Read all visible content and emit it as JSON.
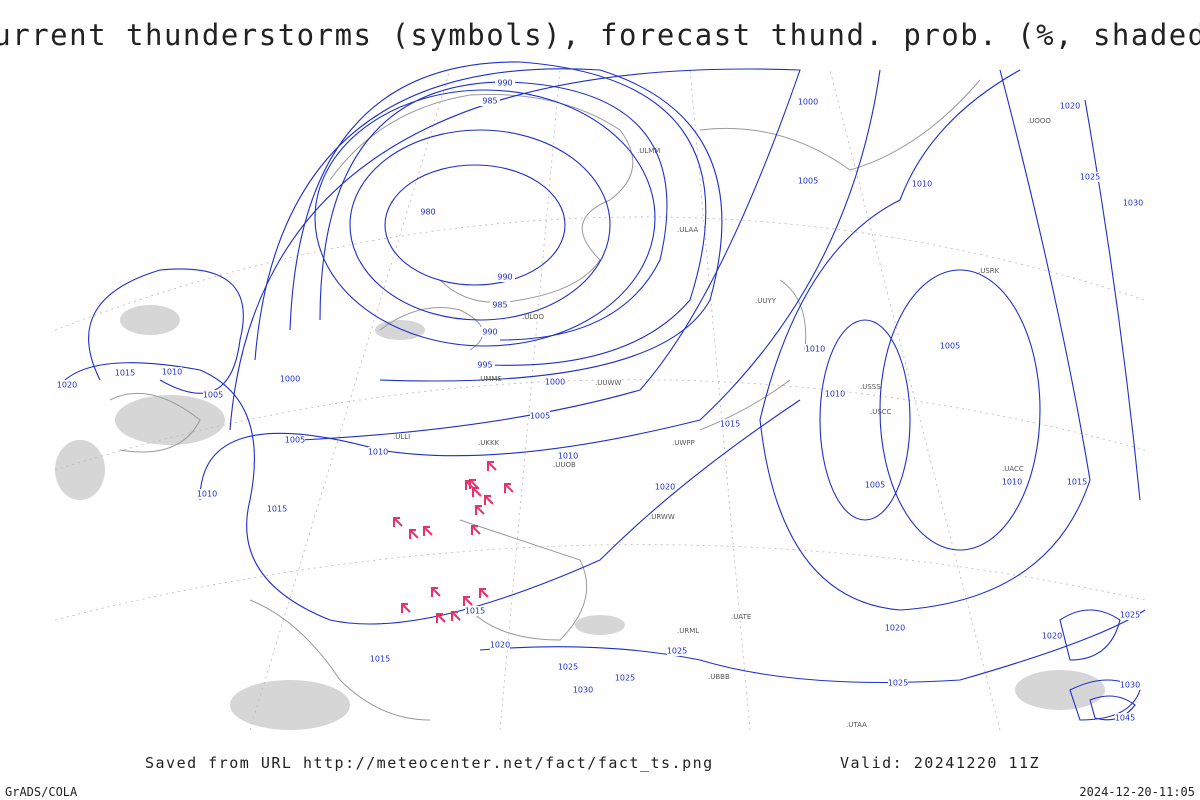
{
  "header": {
    "title": "Current thunderstorms (symbols), forecast thund. prob. (%, shaded)"
  },
  "footer": {
    "source": "Saved from URL http://meteocenter.net/fact/fact_ts.png",
    "valid": "Valid: 20241220 11Z",
    "software": "GrADS/COLA",
    "timestamp": "2024-12-20-11:05"
  },
  "map": {
    "isobar_labels": [
      "990",
      "985",
      "980",
      "990",
      "985",
      "990",
      "995",
      "1000",
      "1005",
      "1010",
      "1010",
      "1005",
      "1000",
      "1005",
      "1010",
      "1015",
      "1020",
      "1010",
      "1015",
      "1015",
      "1015",
      "1020",
      "1025",
      "1025",
      "1030",
      "1025",
      "1020",
      "1015",
      "1010",
      "1010",
      "1005",
      "1005",
      "1010",
      "1015",
      "1005",
      "1000",
      "1010",
      "1020",
      "1025",
      "1030",
      "1020",
      "1025",
      "1020",
      "1025",
      "1030",
      "1045"
    ],
    "station_labels": [
      ".ULOO",
      ".UUOB",
      ".UKKK",
      ".ULLI",
      ".UMMS",
      ".UUWW",
      ".UWPP",
      ".USSS",
      ".USCC",
      ".USRK",
      ".UACC",
      ".UTAA",
      ".UATE",
      ".URML",
      ".UUYY",
      ".ULAA",
      ".ULMM",
      ".UOOO",
      ".URWW",
      ".UBBB"
    ]
  }
}
